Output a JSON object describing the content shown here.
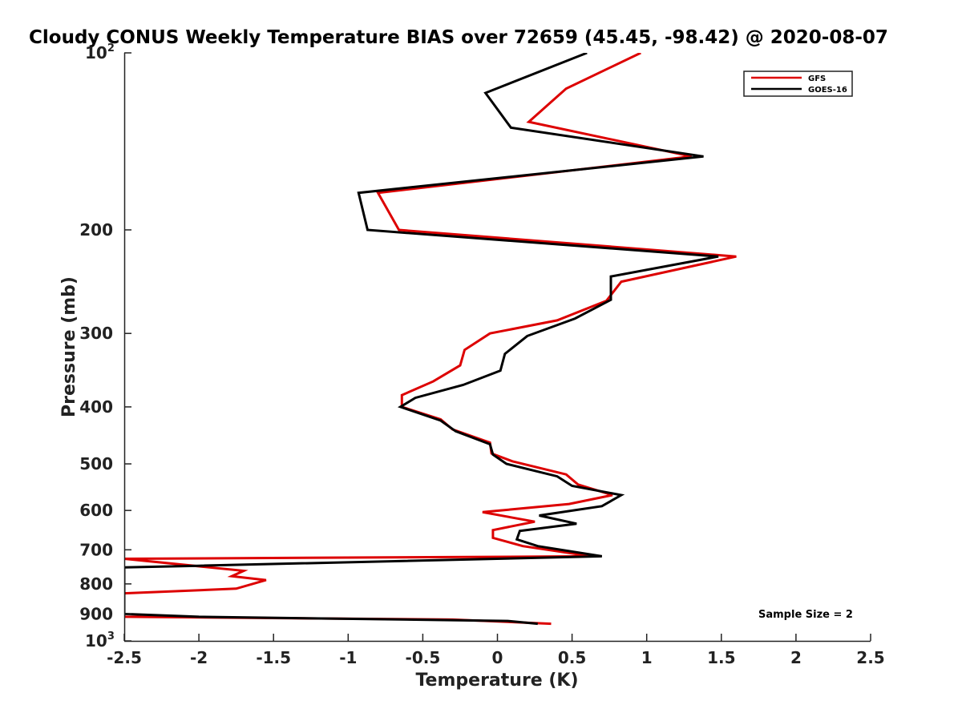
{
  "chart_data": {
    "type": "line",
    "title": "Cloudy CONUS Weekly Temperature BIAS over 72659 (45.45, -98.42) @ 2020-08-07",
    "xlabel": "Temperature (K)",
    "ylabel": "Pressure (mb)",
    "xlim": [
      -2.5,
      2.5
    ],
    "ylim": [
      100,
      1000
    ],
    "y_scale": "log",
    "y_reversed": true,
    "x_ticks": [
      "-2.5",
      "-2",
      "-1.5",
      "-1",
      "-0.5",
      "0",
      "0.5",
      "1",
      "1.5",
      "2",
      "2.5"
    ],
    "y_ticks": [
      {
        "value": 100,
        "label": "10",
        "sup": "2"
      },
      {
        "value": 200,
        "label": "200",
        "sup": ""
      },
      {
        "value": 300,
        "label": "300",
        "sup": ""
      },
      {
        "value": 400,
        "label": "400",
        "sup": ""
      },
      {
        "value": 500,
        "label": "500",
        "sup": ""
      },
      {
        "value": 600,
        "label": "600",
        "sup": ""
      },
      {
        "value": 700,
        "label": "700",
        "sup": ""
      },
      {
        "value": 800,
        "label": "800",
        "sup": ""
      },
      {
        "value": 900,
        "label": "900",
        "sup": ""
      },
      {
        "value": 1000,
        "label": "10",
        "sup": "3"
      }
    ],
    "grid": false,
    "legend_position": "top-right",
    "annotation": "Sample Size = 2",
    "series": [
      {
        "name": "GFS",
        "color": "#dd0000",
        "points": [
          [
            0.96,
            100
          ],
          [
            0.46,
            115
          ],
          [
            0.21,
            131
          ],
          [
            1.3,
            150
          ],
          [
            -0.8,
            173
          ],
          [
            -0.66,
            200
          ],
          [
            1.6,
            222
          ],
          [
            0.83,
            245
          ],
          [
            0.73,
            264
          ],
          [
            0.4,
            285
          ],
          [
            -0.05,
            300
          ],
          [
            -0.22,
            320
          ],
          [
            -0.25,
            340
          ],
          [
            -0.43,
            362
          ],
          [
            -0.64,
            382
          ],
          [
            -0.64,
            400
          ],
          [
            -0.38,
            420
          ],
          [
            -0.3,
            437
          ],
          [
            -0.05,
            460
          ],
          [
            -0.04,
            480
          ],
          [
            0.1,
            495
          ],
          [
            0.46,
            521
          ],
          [
            0.54,
            542
          ],
          [
            0.77,
            565
          ],
          [
            0.48,
            585
          ],
          [
            -0.1,
            604
          ],
          [
            0.25,
            627
          ],
          [
            -0.03,
            648
          ],
          [
            -0.03,
            668
          ],
          [
            0.17,
            690
          ],
          [
            0.63,
            718
          ],
          [
            -2.5,
            725
          ],
          [
            -1.7,
            760
          ],
          [
            -1.78,
            776
          ],
          [
            -1.55,
            788
          ],
          [
            -1.75,
            815
          ],
          [
            -2.5,
            830
          ],
          [
            -2.5,
            910
          ],
          [
            -0.3,
            920
          ],
          [
            0.36,
            935
          ]
        ]
      },
      {
        "name": "GOES-16",
        "color": "#000000",
        "points": [
          [
            0.6,
            100
          ],
          [
            -0.08,
            117
          ],
          [
            0.09,
            134
          ],
          [
            1.38,
            150
          ],
          [
            -0.93,
            173
          ],
          [
            -0.87,
            200
          ],
          [
            1.48,
            222
          ],
          [
            0.76,
            240
          ],
          [
            0.76,
            263
          ],
          [
            0.52,
            283
          ],
          [
            0.2,
            303
          ],
          [
            0.05,
            325
          ],
          [
            0.02,
            347
          ],
          [
            -0.23,
            367
          ],
          [
            -0.55,
            386
          ],
          [
            -0.65,
            400
          ],
          [
            -0.38,
            422
          ],
          [
            -0.28,
            440
          ],
          [
            -0.05,
            463
          ],
          [
            -0.03,
            482
          ],
          [
            0.06,
            500
          ],
          [
            0.4,
            525
          ],
          [
            0.5,
            545
          ],
          [
            0.83,
            565
          ],
          [
            0.7,
            590
          ],
          [
            0.28,
            612
          ],
          [
            0.53,
            632
          ],
          [
            0.15,
            650
          ],
          [
            0.13,
            672
          ],
          [
            0.27,
            690
          ],
          [
            0.7,
            718
          ],
          [
            -2.0,
            745
          ],
          [
            -2.5,
            750
          ],
          [
            -2.5,
            900
          ],
          [
            -2.0,
            910
          ],
          [
            0.07,
            925
          ],
          [
            0.27,
            935
          ]
        ]
      }
    ]
  }
}
